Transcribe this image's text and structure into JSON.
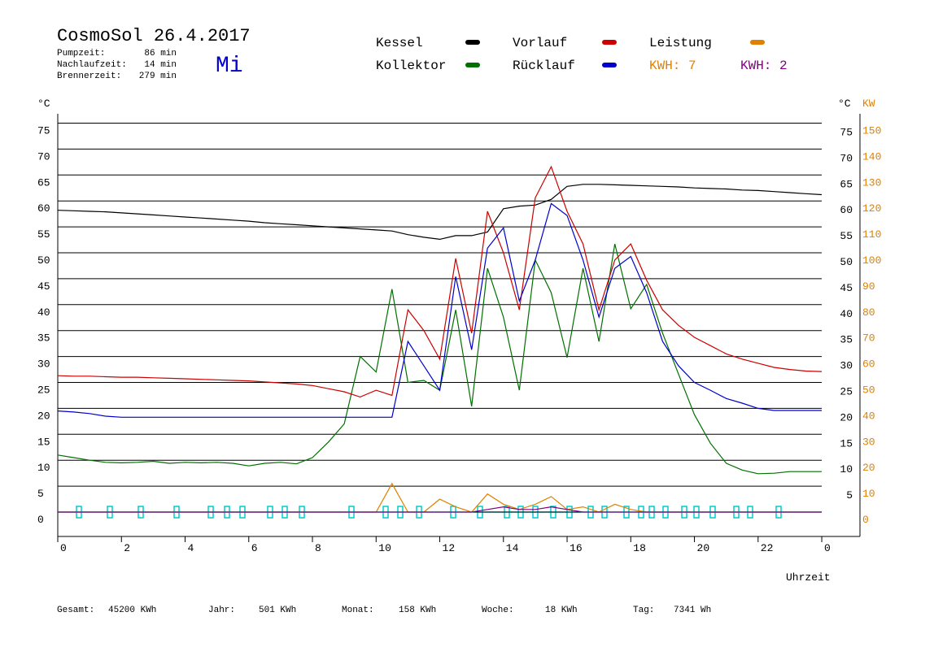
{
  "chart_data": {
    "type": "line",
    "title": "CosmoSol 26.4.2017",
    "subtitle": "Mi",
    "stats": [
      {
        "label": "Pumpzeit:",
        "value": "86 min"
      },
      {
        "label": "Nachlaufzeit:",
        "value": "14 min"
      },
      {
        "label": "Brennerzeit:",
        "value": "279 min"
      }
    ],
    "annotations": [
      {
        "text": "KWH: 7",
        "color": "#e08000"
      },
      {
        "text": "KWH: 2",
        "color": "#800080"
      }
    ],
    "ylabel": "°C",
    "y2label": "KW",
    "xlabel": "Uhrzeit",
    "x": [
      0,
      0.5,
      1,
      1.5,
      2,
      2.5,
      3,
      3.5,
      4,
      4.5,
      5,
      5.5,
      6,
      6.5,
      7,
      7.5,
      8,
      8.5,
      9,
      9.5,
      10,
      10.5,
      11,
      11.5,
      12,
      12.5,
      13,
      13.5,
      14,
      14.5,
      15,
      15.5,
      16,
      16.5,
      17,
      17.5,
      18,
      18.5,
      19,
      19.5,
      20,
      20.5,
      21,
      21.5,
      22,
      22.5,
      23,
      23.5,
      24
    ],
    "series": [
      {
        "name": "Kessel",
        "color": "#000000",
        "values": [
          58.2,
          58.1,
          58,
          57.9,
          57.7,
          57.5,
          57.3,
          57.1,
          56.9,
          56.7,
          56.5,
          56.3,
          56.1,
          55.8,
          55.6,
          55.4,
          55.2,
          55,
          54.8,
          54.6,
          54.4,
          54.2,
          53.5,
          53,
          52.6,
          53.3,
          53.3,
          54,
          58.5,
          59,
          59.2,
          60.3,
          62.8,
          63.2,
          63.2,
          63.1,
          63,
          62.9,
          62.8,
          62.7,
          62.5,
          62.4,
          62.3,
          62.1,
          62,
          61.8,
          61.6,
          61.4,
          61.2
        ]
      },
      {
        "name": "Kollektor",
        "color": "#007000",
        "values": [
          11,
          10.5,
          10,
          9.6,
          9.5,
          9.6,
          9.8,
          9.4,
          9.6,
          9.5,
          9.6,
          9.4,
          8.9,
          9.4,
          9.6,
          9.3,
          10.5,
          13.5,
          17,
          30,
          27,
          43,
          25,
          25.4,
          23.5,
          39,
          20.4,
          47,
          37.6,
          23.5,
          48.6,
          42.3,
          29.8,
          47,
          32.9,
          51.7,
          39.2,
          43.9,
          34.5,
          26.6,
          18.8,
          13.3,
          9.4,
          8.1,
          7.4,
          7.5,
          7.8,
          7.8,
          7.8
        ]
      },
      {
        "name": "Vorlauf",
        "color": "#cc0000",
        "values": [
          26.3,
          26.2,
          26.2,
          26.1,
          26,
          26,
          25.9,
          25.8,
          25.7,
          25.6,
          25.5,
          25.4,
          25.3,
          25.1,
          24.9,
          24.7,
          24.4,
          23.8,
          23.2,
          22.2,
          23.5,
          22.5,
          39,
          35,
          29.5,
          48.9,
          34.5,
          58,
          50,
          39,
          60.6,
          66.6,
          58,
          51.7,
          39,
          48.6,
          51.7,
          44.7,
          39,
          36,
          33.7,
          32.1,
          30.5,
          29.5,
          28.7,
          27.9,
          27.5,
          27.2,
          27.1
        ]
      },
      {
        "name": "Rücklauf",
        "color": "#0000cc",
        "values": [
          19.5,
          19.3,
          19,
          18.5,
          18.3,
          18.3,
          18.3,
          18.3,
          18.3,
          18.3,
          18.3,
          18.3,
          18.3,
          18.3,
          18.3,
          18.3,
          18.3,
          18.3,
          18.3,
          18.3,
          18.3,
          18.3,
          32.9,
          28.2,
          23.5,
          45.4,
          31.3,
          50.9,
          54.8,
          40.7,
          48.6,
          59.5,
          57.2,
          48.6,
          37.6,
          47,
          49.3,
          42.3,
          32.9,
          28.2,
          25,
          23.5,
          21.9,
          21,
          20,
          19.6,
          19.6,
          19.6,
          19.6
        ]
      },
      {
        "name": "Leistung",
        "color": "#e08000",
        "axis": "y2",
        "values": [
          0,
          0,
          0,
          0,
          0,
          0,
          0,
          0,
          0,
          0,
          0,
          0,
          0,
          0,
          0,
          0,
          0,
          0,
          0,
          0,
          0,
          11,
          0,
          0,
          5,
          2,
          0,
          7,
          3,
          1,
          3,
          6,
          1,
          2,
          0,
          3,
          1,
          0,
          0,
          0,
          0,
          0,
          0,
          0,
          0,
          0,
          0,
          0,
          0
        ]
      },
      {
        "color": "#800080",
        "axis": "y2",
        "values": [
          0,
          0,
          0,
          0,
          0,
          0,
          0,
          0,
          0,
          0,
          0,
          0,
          0,
          0,
          0,
          0,
          0,
          0,
          0,
          0,
          0,
          0,
          0,
          0,
          0,
          0,
          0,
          1,
          2,
          1,
          1,
          2,
          1,
          0,
          0,
          0,
          0,
          0,
          0,
          0,
          0,
          0,
          0,
          0,
          0,
          0,
          0,
          0,
          0
        ]
      }
    ],
    "xlim": [
      0,
      25.2
    ],
    "xticks": [
      0,
      2,
      4,
      6,
      8,
      10,
      12,
      14,
      16,
      18,
      20,
      22,
      {
        "value": 24,
        "label": "0"
      }
    ],
    "ylim": [
      -4.7,
      76.8
    ],
    "yticks": [
      0,
      5,
      10,
      15,
      20,
      25,
      30,
      35,
      40,
      45,
      50,
      55,
      60,
      65,
      70,
      75
    ],
    "y2lim": [
      -9.4,
      153.6
    ],
    "y2ticks": [
      0,
      10,
      20,
      30,
      40,
      50,
      60,
      70,
      80,
      90,
      100,
      110,
      120,
      130,
      140,
      150
    ],
    "grid": true,
    "totals": [
      {
        "label": "Gesamt:",
        "value": "45200 KWh"
      },
      {
        "label": "Jahr:",
        "value": "501 KWh"
      },
      {
        "label": "Monat:",
        "value": "158 KWh"
      },
      {
        "label": "Woche:",
        "value": "18 KWh"
      },
      {
        "label": "Tag:",
        "value": "7341 Wh"
      }
    ]
  }
}
